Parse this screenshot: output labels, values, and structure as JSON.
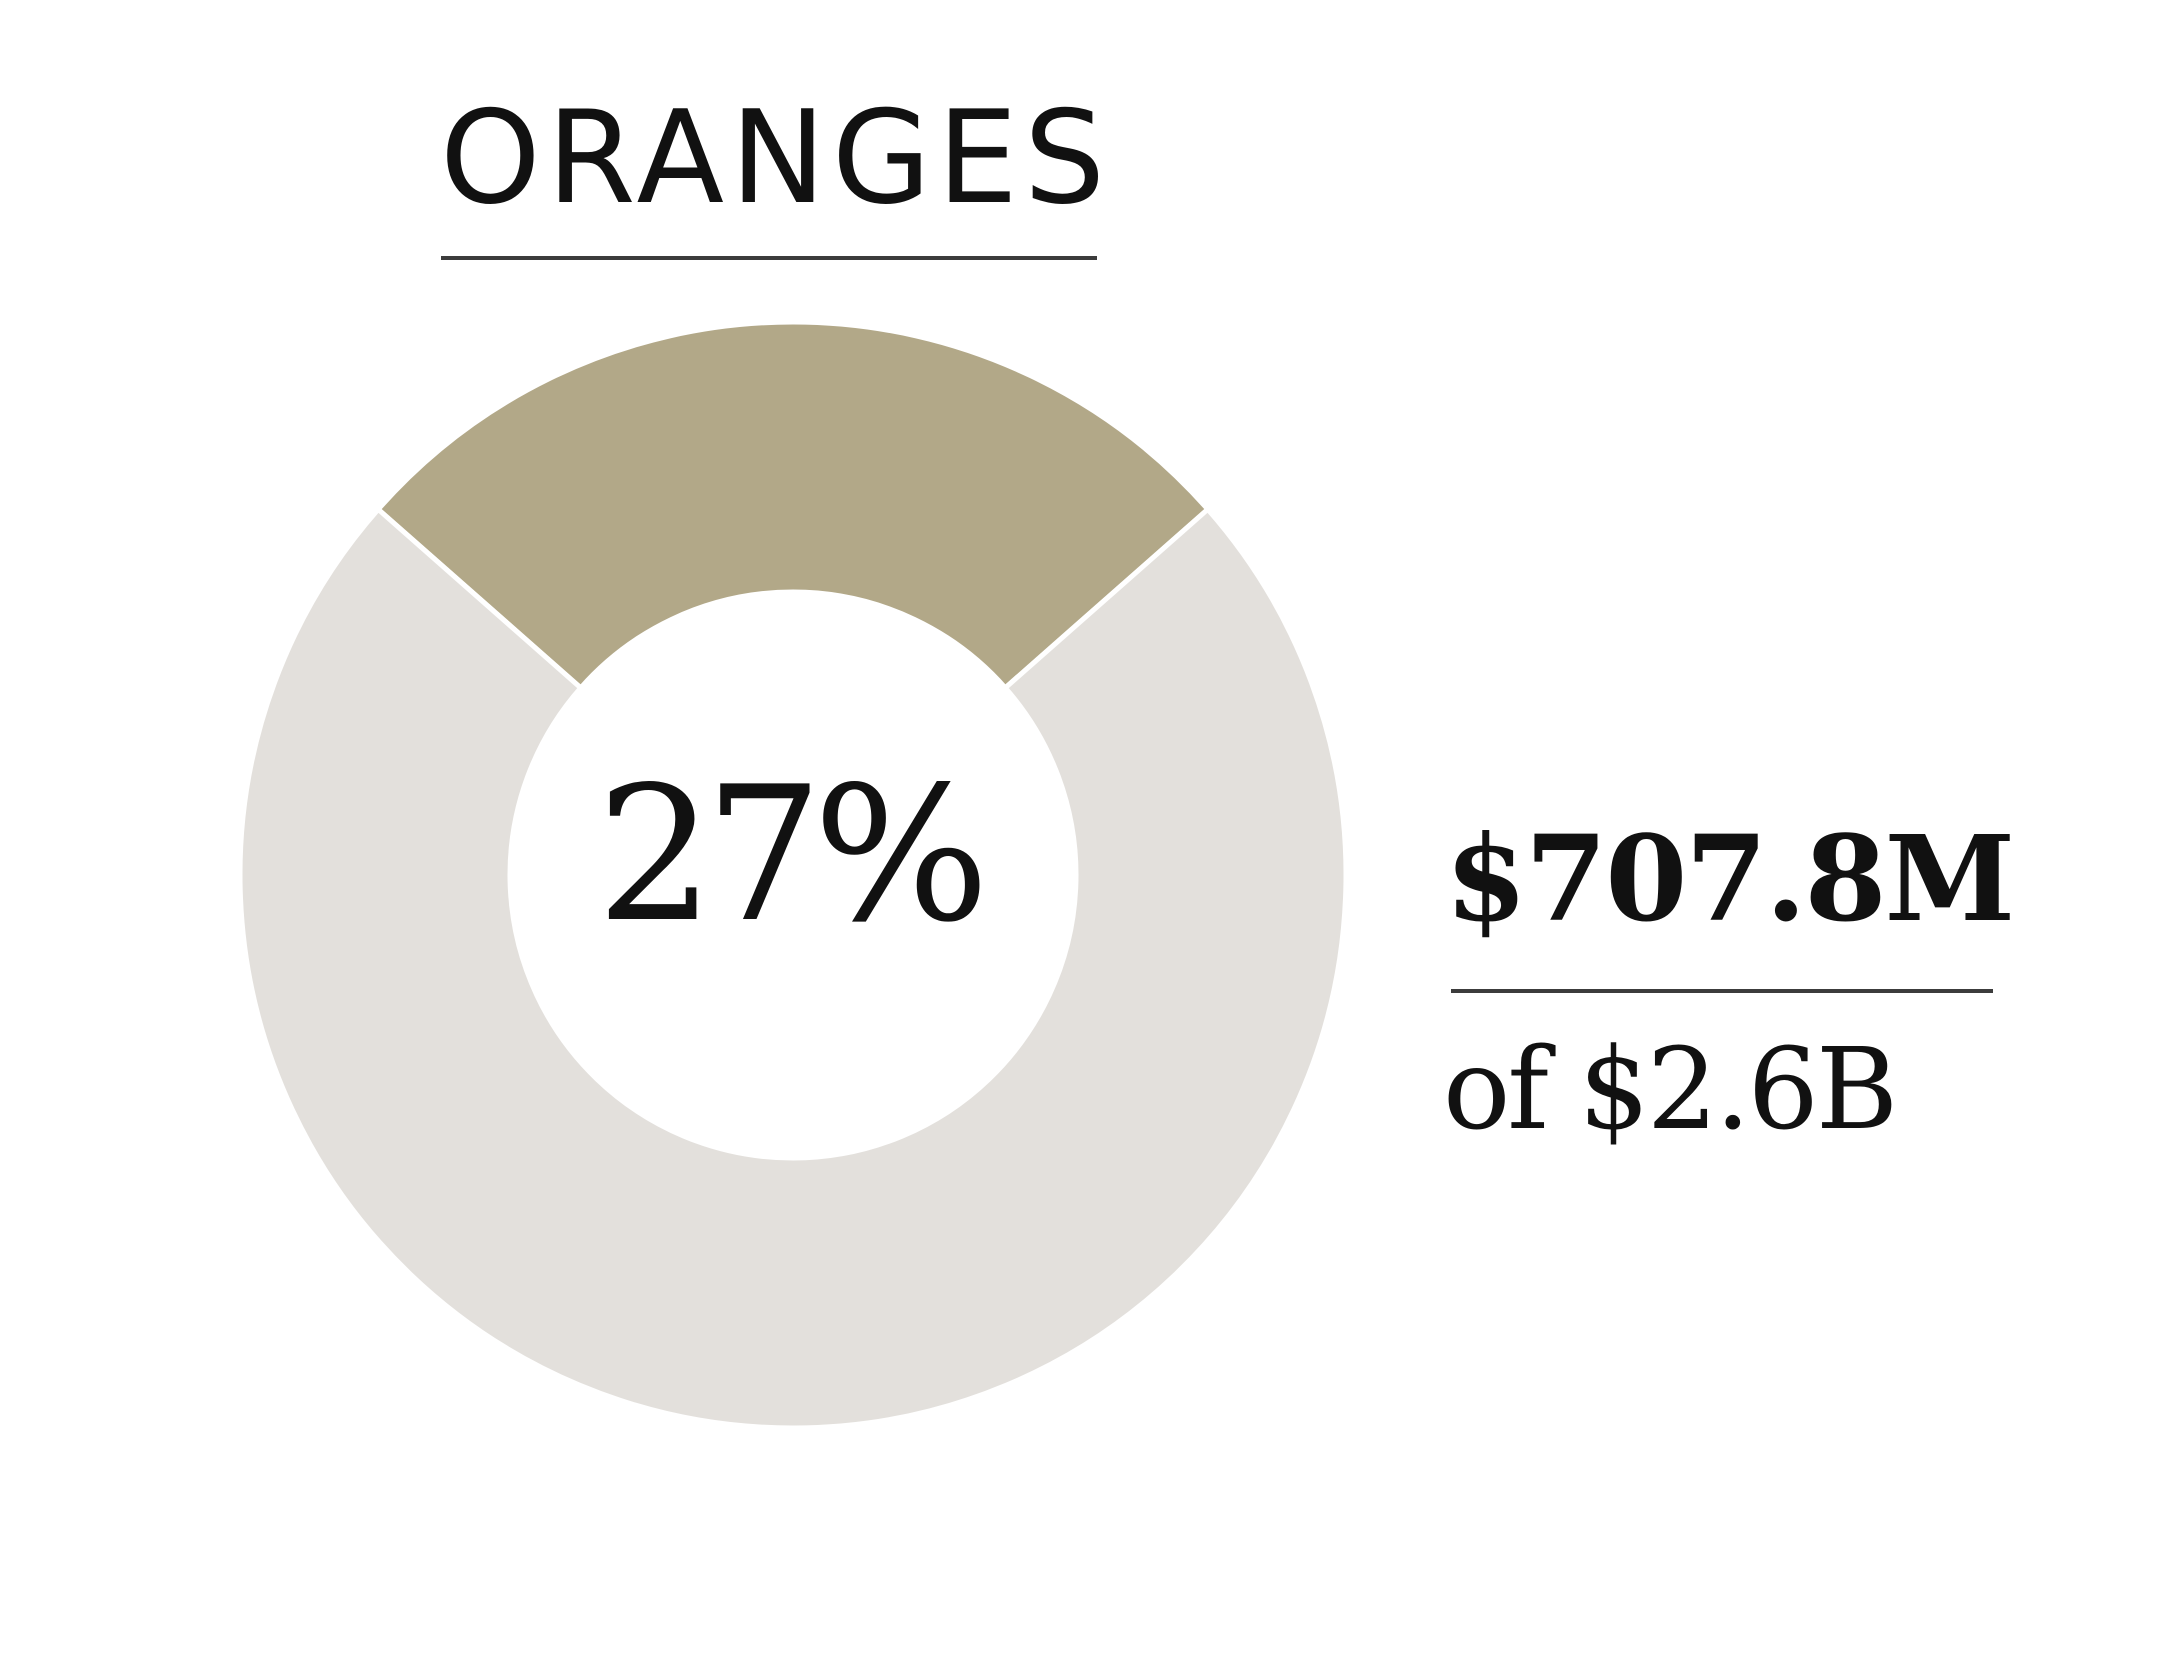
{
  "chart_data": {
    "type": "pie",
    "title": "ORANGES",
    "center_label": "27%",
    "value_label": "$707.8M",
    "total_label": "of $2.6B",
    "slices": [
      {
        "label": "ORANGES",
        "value": 27,
        "color": "#b2a888"
      },
      {
        "label": "",
        "value": 73,
        "color": "#e3e0dc"
      }
    ]
  }
}
